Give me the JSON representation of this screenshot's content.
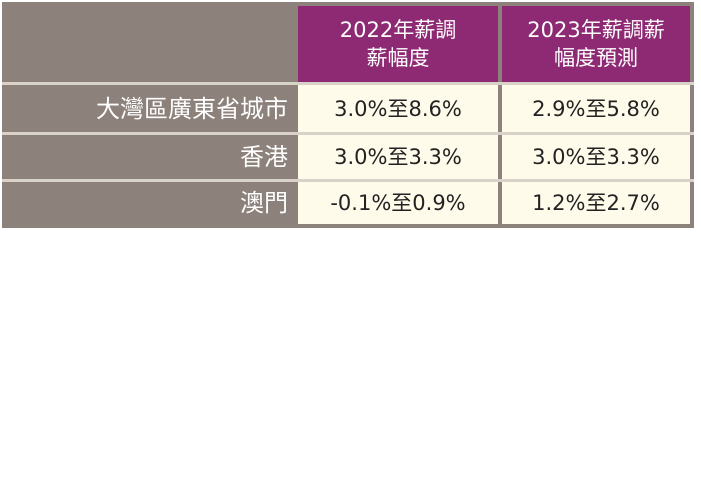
{
  "table": {
    "header": {
      "col1": [
        "2022年薪調",
        "薪幅度"
      ],
      "col2": [
        "2023年薪調薪",
        "幅度預測"
      ]
    },
    "rows": [
      {
        "label": "大灣區廣東省城市",
        "v2022": "3.0%至8.6%",
        "v2023": "2.9%至5.8%"
      },
      {
        "label": "香港",
        "v2022": "3.0%至3.3%",
        "v2023": "3.0%至3.3%"
      },
      {
        "label": "澳門",
        "v2022": "-0.1%至0.9%",
        "v2023": "1.2%至2.7%"
      }
    ]
  },
  "colors": {
    "header_bg": "#8e2a74",
    "label_bg": "#8c817b",
    "value_bg": "#fffbea",
    "header_text": "#ffffff",
    "value_text": "#222222"
  }
}
